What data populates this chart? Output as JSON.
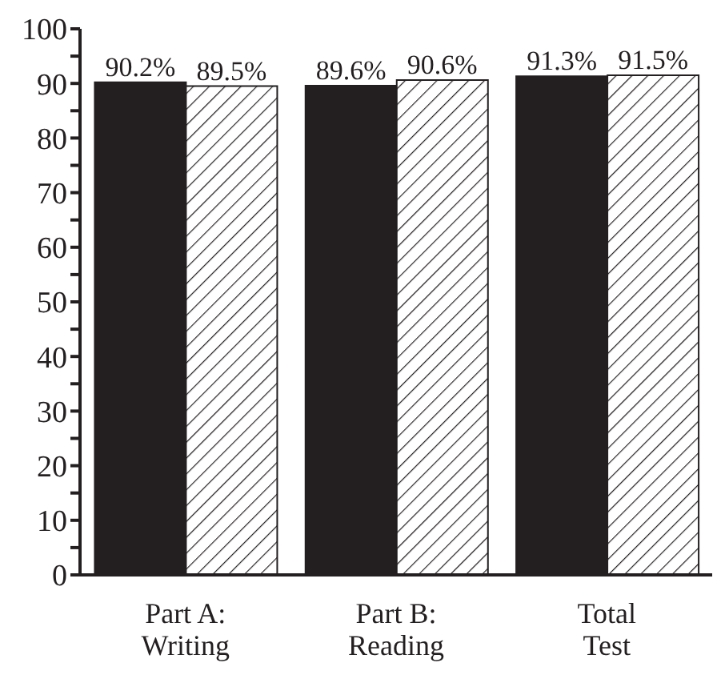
{
  "chart_data": {
    "type": "bar",
    "categories": [
      "Part A: Writing",
      "Part B: Reading",
      "Total Test"
    ],
    "series": [
      {
        "color": "#231f20",
        "values": [
          90.2,
          89.6,
          91.3
        ],
        "value_labels": [
          "90.2%",
          "89.6%",
          "91.3%"
        ]
      },
      {
        "color": "#231f20",
        "values": [
          89.5,
          90.6,
          91.5
        ],
        "value_labels": [
          "89.5%",
          "90.6%",
          "91.5%"
        ]
      }
    ],
    "ylim": [
      0,
      100
    ],
    "yticks": [
      0,
      {
        "value": 5,
        "label": null
      },
      10,
      {
        "value": 15,
        "label": null
      },
      20,
      {
        "value": 25,
        "label": null
      },
      30,
      {
        "value": 35,
        "label": null
      },
      40,
      {
        "value": 45,
        "label": null
      },
      50,
      {
        "value": 55,
        "label": null
      },
      60,
      {
        "value": 65,
        "label": null
      },
      70,
      {
        "value": 75,
        "label": null
      },
      80,
      {
        "value": 85,
        "label": null
      },
      90,
      {
        "value": 95,
        "label": null
      },
      100
    ],
    "grid": false,
    "legend": false
  }
}
